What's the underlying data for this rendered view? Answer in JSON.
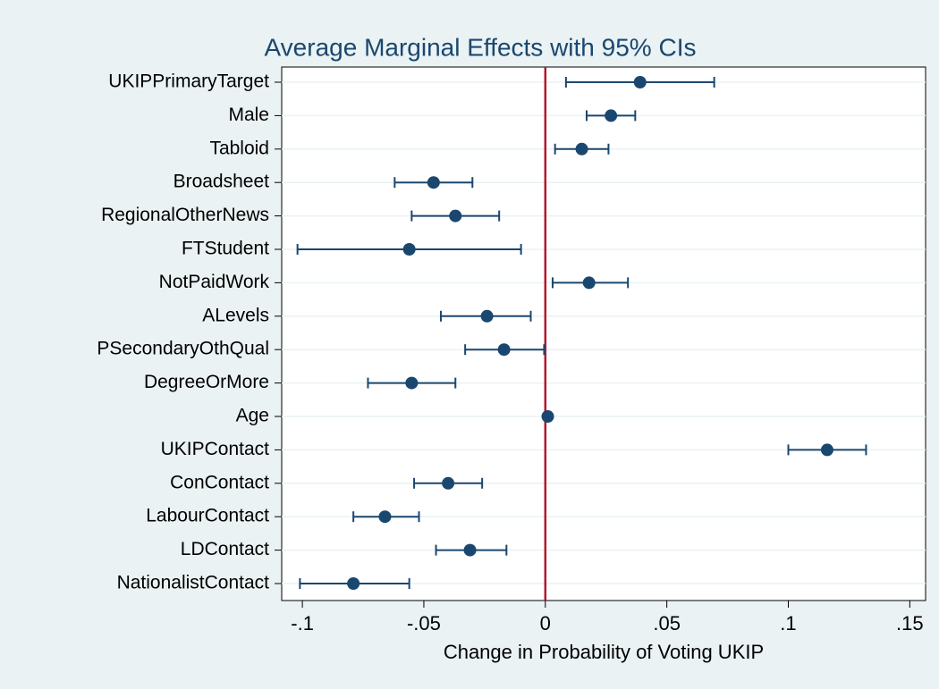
{
  "chart_data": {
    "type": "dot-ci",
    "title": "Average Marginal Effects with 95% CIs",
    "x_label": "Change in Probability of Voting UKIP",
    "categories": [
      "UKIPPrimaryTarget",
      "Male",
      "Tabloid",
      "Broadsheet",
      "RegionalOtherNews",
      "FTStudent",
      "NotPaidWork",
      "ALevels",
      "PSecondaryOthQual",
      "DegreeOrMore",
      "Age",
      "UKIPContact",
      "ConContact",
      "LabourContact",
      "LDContact",
      "NationalistContact"
    ],
    "series": [
      {
        "color": "#1a476f",
        "values": [
          0.039,
          0.027,
          0.015,
          -0.046,
          -0.037,
          -0.056,
          0.018,
          -0.024,
          -0.017,
          -0.055,
          0.001,
          0.116,
          -0.04,
          -0.066,
          -0.031,
          -0.079
        ],
        "lower": [
          0.0085,
          0.017,
          0.004,
          -0.062,
          -0.055,
          -0.102,
          0.003,
          -0.043,
          -0.033,
          -0.073,
          0.0008,
          0.1,
          -0.054,
          -0.079,
          -0.045,
          -0.101
        ],
        "upper": [
          0.0695,
          0.037,
          0.026,
          -0.03,
          -0.019,
          -0.01,
          0.034,
          -0.006,
          -0.0005,
          -0.037,
          0.0012,
          0.132,
          -0.026,
          -0.052,
          -0.016,
          -0.056
        ]
      }
    ],
    "xlim": [
      -0.1085,
      0.1565
    ],
    "xticks": [
      {
        "value": -0.1,
        "label": "-.1"
      },
      {
        "value": -0.05,
        "label": "-.05"
      },
      0,
      {
        "value": 0.05,
        "label": ".05"
      },
      {
        "value": 0.1,
        "label": ".1"
      },
      {
        "value": 0.15,
        "label": ".15"
      }
    ],
    "reference_line": 0,
    "reference_color": "#b5162b",
    "grid": true
  }
}
